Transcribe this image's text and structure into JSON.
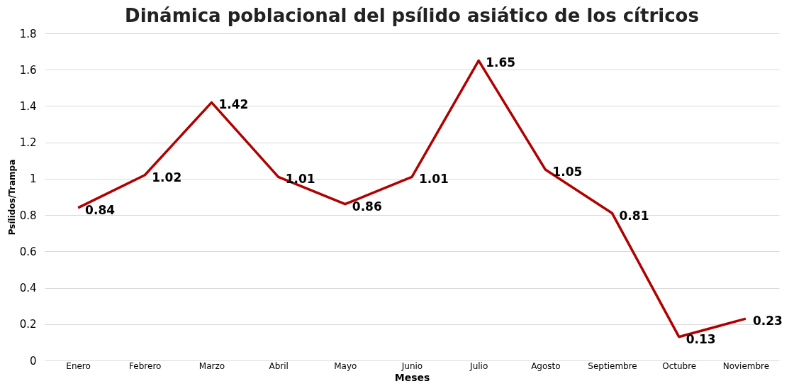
{
  "chart_data": {
    "type": "line",
    "title": "Dinámica poblacional del psílido asiático de los cítricos",
    "xlabel": "Meses",
    "ylabel": "Psílidos/Trampa",
    "categories": [
      "Enero",
      "Febrero",
      "Marzo",
      "Abril",
      "Mayo",
      "Junio",
      "Julio",
      "Agosto",
      "Septiembre",
      "Octubre",
      "Noviembre"
    ],
    "series": [
      {
        "color": "#b00000",
        "values": [
          0.84,
          1.02,
          1.42,
          1.01,
          0.86,
          1.01,
          1.65,
          1.05,
          0.81,
          0.13,
          0.23
        ]
      }
    ],
    "ylim": [
      0,
      1.8
    ],
    "yticks": [
      0,
      0.2,
      0.4,
      0.6,
      0.8,
      1,
      1.2,
      1.4,
      1.6,
      1.8
    ],
    "grid": "y",
    "data_labels": true,
    "legend": false,
    "marker": "none",
    "line_style": "solid"
  }
}
